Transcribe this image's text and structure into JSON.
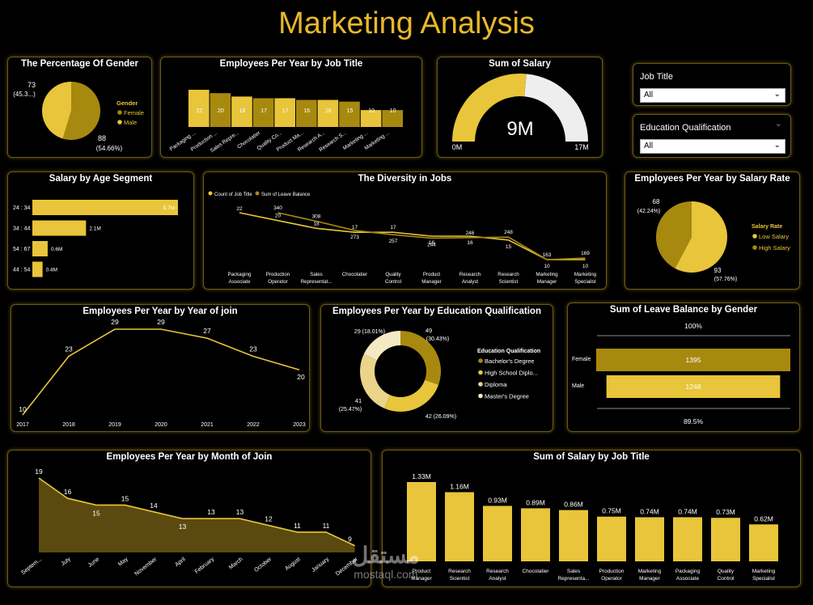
{
  "header": {
    "title": "Marketing Analysis"
  },
  "colors": {
    "gold": "#E8C53A",
    "dark_gold": "#A8890F",
    "pale_gold": "#F0E2A0",
    "white": "#FFFFFF"
  },
  "gender_pie": {
    "title": "The Percentage Of Gender",
    "legend_title": "Gender",
    "slices": [
      {
        "name": "Female",
        "value": 88,
        "label_value": "88",
        "label_pct": "(54.66%)"
      },
      {
        "name": "Male",
        "value": 73,
        "label_value": "73",
        "label_pct": "(45.3...)"
      }
    ]
  },
  "job_title_bars": {
    "title": "Employees Per Year by Job Title",
    "items": [
      {
        "label": "Packaging ...",
        "value": 22
      },
      {
        "label": "Production ...",
        "value": 20
      },
      {
        "label": "Sales Repre...",
        "value": 18
      },
      {
        "label": "Chocolatier",
        "value": 17
      },
      {
        "label": "Quality Co...",
        "value": 17
      },
      {
        "label": "Product Ma...",
        "value": 16
      },
      {
        "label": "Research A...",
        "value": 16
      },
      {
        "label": "Research S...",
        "value": 15
      },
      {
        "label": "Marketing ...",
        "value": 10
      },
      {
        "label": "Marketing ...",
        "value": 10
      }
    ]
  },
  "salary_gauge": {
    "title": "Sum of Salary",
    "value_label": "9M",
    "min_label": "0M",
    "max_label": "17M",
    "value": 9,
    "max": 17
  },
  "slicers": [
    {
      "label": "Job Title",
      "value": "All"
    },
    {
      "label": "Education Qualification",
      "value": "All"
    }
  ],
  "age_segment": {
    "title": "Salary by Age Segment",
    "items": [
      {
        "label": "24 : 34",
        "value": 5.7,
        "value_label": "5.7M"
      },
      {
        "label": "34 : 44",
        "value": 2.1,
        "value_label": "2.1M"
      },
      {
        "label": "54 : 67",
        "value": 0.6,
        "value_label": "0.6M"
      },
      {
        "label": "44 : 54",
        "value": 0.4,
        "value_label": "0.4M"
      }
    ]
  },
  "diversity": {
    "title": "The Diversity in Jobs",
    "legend": [
      "Count of Job Title",
      "Sum of Leave Balance"
    ],
    "categories": [
      "Packaging Associate",
      "Production Operator",
      "Sales Representat...",
      "Chocolatier",
      "Quality Control",
      "Product Manager",
      "Research Analyst",
      "Research Scientist",
      "Marketing Manager",
      "Marketing Specialist"
    ],
    "count": [
      22,
      20,
      18,
      17,
      17,
      16,
      16,
      15,
      10,
      10
    ],
    "leave": [
      null,
      340,
      308,
      273,
      257,
      244,
      246,
      248,
      163,
      169
    ]
  },
  "salary_rate": {
    "title": "Employees Per Year by Salary Rate",
    "legend_title": "Salary Rate",
    "slices": [
      {
        "name": "Low Salary",
        "value": 93,
        "label_value": "93",
        "label_pct": "(57.76%)"
      },
      {
        "name": "High Salary",
        "value": 68,
        "label_value": "68",
        "label_pct": "(42.24%)"
      }
    ]
  },
  "year_join": {
    "title": "Employees Per Year by Year of join",
    "x": [
      "2017",
      "2018",
      "2019",
      "2020",
      "2021",
      "2022",
      "2023"
    ],
    "y": [
      10,
      23,
      29,
      29,
      27,
      23,
      20
    ]
  },
  "education": {
    "title": "Employees Per Year by Education Qualification",
    "legend_title": "Education Qualification",
    "slices": [
      {
        "name": "Bachelor's Degree",
        "value": 49,
        "label_value": "49",
        "label_pct": "(30.43%)"
      },
      {
        "name": "High School Diplo...",
        "value": 42,
        "label_value": "42",
        "label_pct": "(26.09%)"
      },
      {
        "name": "Diploma",
        "value": 41,
        "label_value": "41",
        "label_pct": "(25.47%)"
      },
      {
        "name": "Master's Degree",
        "value": 29,
        "label_value": "29",
        "label_pct": "(18.01%)"
      }
    ]
  },
  "leave_gender": {
    "title": "Sum of Leave Balance by Gender",
    "top_label": "100%",
    "bottom_label": "89.5%",
    "items": [
      {
        "label": "Female",
        "value": 1395,
        "value_label": "1395"
      },
      {
        "label": "Male",
        "value": 1248,
        "value_label": "1248"
      }
    ]
  },
  "month_join": {
    "title": "Employees Per Year by Month of Join",
    "x": [
      "Septem...",
      "July",
      "June",
      "May",
      "November",
      "April",
      "February",
      "March",
      "October",
      "August",
      "January",
      "December"
    ],
    "y": [
      19,
      16,
      15,
      15,
      14,
      13,
      13,
      13,
      12,
      11,
      11,
      9
    ]
  },
  "salary_job": {
    "title": "Sum of Salary by Job Title",
    "items": [
      {
        "label": "Product Manager",
        "value": 1.33,
        "value_label": "1.33M"
      },
      {
        "label": "Research Scientist",
        "value": 1.16,
        "value_label": "1.16M"
      },
      {
        "label": "Research Analyst",
        "value": 0.93,
        "value_label": "0.93M"
      },
      {
        "label": "Chocolatier",
        "value": 0.89,
        "value_label": "0.89M"
      },
      {
        "label": "Sales Representa...",
        "value": 0.86,
        "value_label": "0.86M"
      },
      {
        "label": "Production Operator",
        "value": 0.75,
        "value_label": "0.75M"
      },
      {
        "label": "Marketing Manager",
        "value": 0.74,
        "value_label": "0.74M"
      },
      {
        "label": "Packaging Associate",
        "value": 0.74,
        "value_label": "0.74M"
      },
      {
        "label": "Quality Control",
        "value": 0.73,
        "value_label": "0.73M"
      },
      {
        "label": "Marketing Specialist",
        "value": 0.62,
        "value_label": "0.62M"
      }
    ]
  },
  "watermark": {
    "arabic": "مستقل",
    "latin": "mostaql.com"
  },
  "chart_data": [
    {
      "type": "pie",
      "title": "The Percentage Of Gender",
      "categories": [
        "Female",
        "Male"
      ],
      "values": [
        88,
        73
      ]
    },
    {
      "type": "bar",
      "title": "Employees Per Year by Job Title",
      "categories": [
        "Packaging ...",
        "Production ...",
        "Sales Repre...",
        "Chocolatier",
        "Quality Co...",
        "Product Ma...",
        "Research A...",
        "Research S...",
        "Marketing ...",
        "Marketing ..."
      ],
      "values": [
        22,
        20,
        18,
        17,
        17,
        16,
        16,
        15,
        10,
        10
      ]
    },
    {
      "type": "bar",
      "title": "Salary by Age Segment",
      "categories": [
        "24 : 34",
        "34 : 44",
        "54 : 67",
        "44 : 54"
      ],
      "values": [
        5.7,
        2.1,
        0.6,
        0.4
      ]
    },
    {
      "type": "line",
      "title": "The Diversity in Jobs",
      "categories": [
        "Packaging Associate",
        "Production Operator",
        "Sales Representat...",
        "Chocolatier",
        "Quality Control",
        "Product Manager",
        "Research Analyst",
        "Research Scientist",
        "Marketing Manager",
        "Marketing Specialist"
      ],
      "series": [
        {
          "name": "Count of Job Title",
          "values": [
            22,
            20,
            18,
            17,
            17,
            16,
            16,
            15,
            10,
            10
          ]
        },
        {
          "name": "Sum of Leave Balance",
          "values": [
            null,
            340,
            308,
            273,
            257,
            244,
            246,
            248,
            163,
            169
          ]
        }
      ]
    },
    {
      "type": "pie",
      "title": "Employees Per Year by Salary Rate",
      "categories": [
        "Low Salary",
        "High Salary"
      ],
      "values": [
        93,
        68
      ]
    },
    {
      "type": "line",
      "title": "Employees Per Year by Year of join",
      "categories": [
        "2017",
        "2018",
        "2019",
        "2020",
        "2021",
        "2022",
        "2023"
      ],
      "values": [
        10,
        23,
        29,
        29,
        27,
        23,
        20
      ]
    },
    {
      "type": "pie",
      "title": "Employees Per Year by Education Qualification",
      "categories": [
        "Bachelor's Degree",
        "High School Diplo...",
        "Diploma",
        "Master's Degree"
      ],
      "values": [
        49,
        42,
        41,
        29
      ]
    },
    {
      "type": "bar",
      "title": "Sum of Leave Balance by Gender",
      "categories": [
        "Female",
        "Male"
      ],
      "values": [
        1395,
        1248
      ]
    },
    {
      "type": "area",
      "title": "Employees Per Year by Month of Join",
      "categories": [
        "Septem...",
        "July",
        "June",
        "May",
        "November",
        "April",
        "February",
        "March",
        "October",
        "August",
        "January",
        "December"
      ],
      "values": [
        19,
        16,
        15,
        15,
        14,
        13,
        13,
        13,
        12,
        11,
        11,
        9
      ]
    },
    {
      "type": "bar",
      "title": "Sum of Salary by Job Title",
      "categories": [
        "Product Manager",
        "Research Scientist",
        "Research Analyst",
        "Chocolatier",
        "Sales Representa...",
        "Production Operator",
        "Marketing Manager",
        "Packaging Associate",
        "Quality Control",
        "Marketing Specialist"
      ],
      "values": [
        1.33,
        1.16,
        0.93,
        0.89,
        0.86,
        0.75,
        0.74,
        0.74,
        0.73,
        0.62
      ]
    }
  ]
}
